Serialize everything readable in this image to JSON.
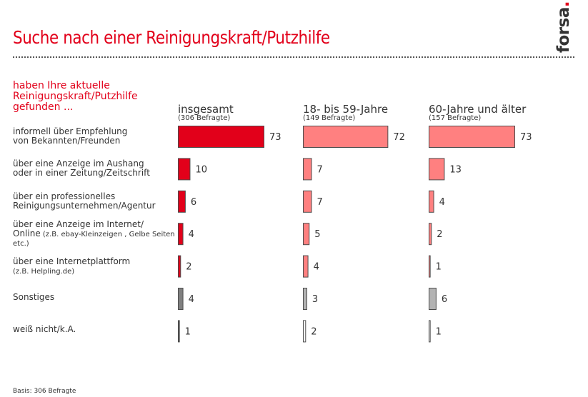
{
  "logo": {
    "text": "forsa",
    "dot": "."
  },
  "chart_data": {
    "type": "bar",
    "orientation": "horizontal",
    "title": "Suche nach einer Reinigungskraft/Putzhilfe",
    "question": "haben Ihre aktuelle Reinigungskraft/Putzhilfe gefunden ...",
    "unit": "%",
    "categories": [
      {
        "label": "informell über Empfehlung von Bekannten/Freunden",
        "note": "",
        "kind": "main"
      },
      {
        "label": "über eine Anzeige im Aushang oder in einer Zeitung/Zeitschrift",
        "note": "",
        "kind": "main"
      },
      {
        "label": "über ein professionelles Reinigungsunternehmen/Agentur",
        "note": "",
        "kind": "main"
      },
      {
        "label": "über eine Anzeige im Internet/ Online",
        "note": "(z.B. ebay-Kleinzeigen , Gelbe Seiten etc.)",
        "kind": "main"
      },
      {
        "label": "über eine Internetplattform",
        "note": "(z.B. Helpling.de)",
        "kind": "main"
      },
      {
        "label": "Sonstiges",
        "note": "",
        "kind": "other"
      },
      {
        "label": "weiß nicht/k.A.",
        "note": "",
        "kind": "dk"
      }
    ],
    "category_lines": [
      [
        "informell über Empfehlung",
        "von Bekannten/Freunden"
      ],
      [
        "über eine Anzeige im Aushang",
        "oder in einer Zeitung/Zeitschrift"
      ],
      [
        "über ein professionelles",
        "Reinigungsunternehmen/Agentur"
      ],
      [
        "über eine Anzeige im Internet/",
        "Online"
      ],
      [
        "über eine Internetplattform"
      ],
      [
        "Sonstiges"
      ],
      [
        "weiß nicht/k.A."
      ]
    ],
    "series": [
      {
        "name": "insgesamt",
        "base": "(306 Befragte)",
        "values": [
          73,
          10,
          6,
          4,
          2,
          4,
          1
        ],
        "colors": {
          "main": "#e2001a",
          "other": "#808080",
          "dk": "#ffffff"
        }
      },
      {
        "name": "18- bis 59-Jahre",
        "base": "(149 Befragte)",
        "values": [
          72,
          7,
          7,
          5,
          4,
          3,
          2
        ],
        "colors": {
          "main": "#ff8080",
          "other": "#b3b3b3",
          "dk": "#ffffff"
        }
      },
      {
        "name": "60-Jahre und älter",
        "base": "(157 Befragte)",
        "values": [
          73,
          13,
          4,
          2,
          1,
          6,
          1
        ],
        "colors": {
          "main": "#ff8080",
          "other": "#b3b3b3",
          "dk": "#ffffff"
        }
      }
    ],
    "bar_border_color": "#4d4d4d",
    "footnote": "Basis: 306 Befragte"
  }
}
